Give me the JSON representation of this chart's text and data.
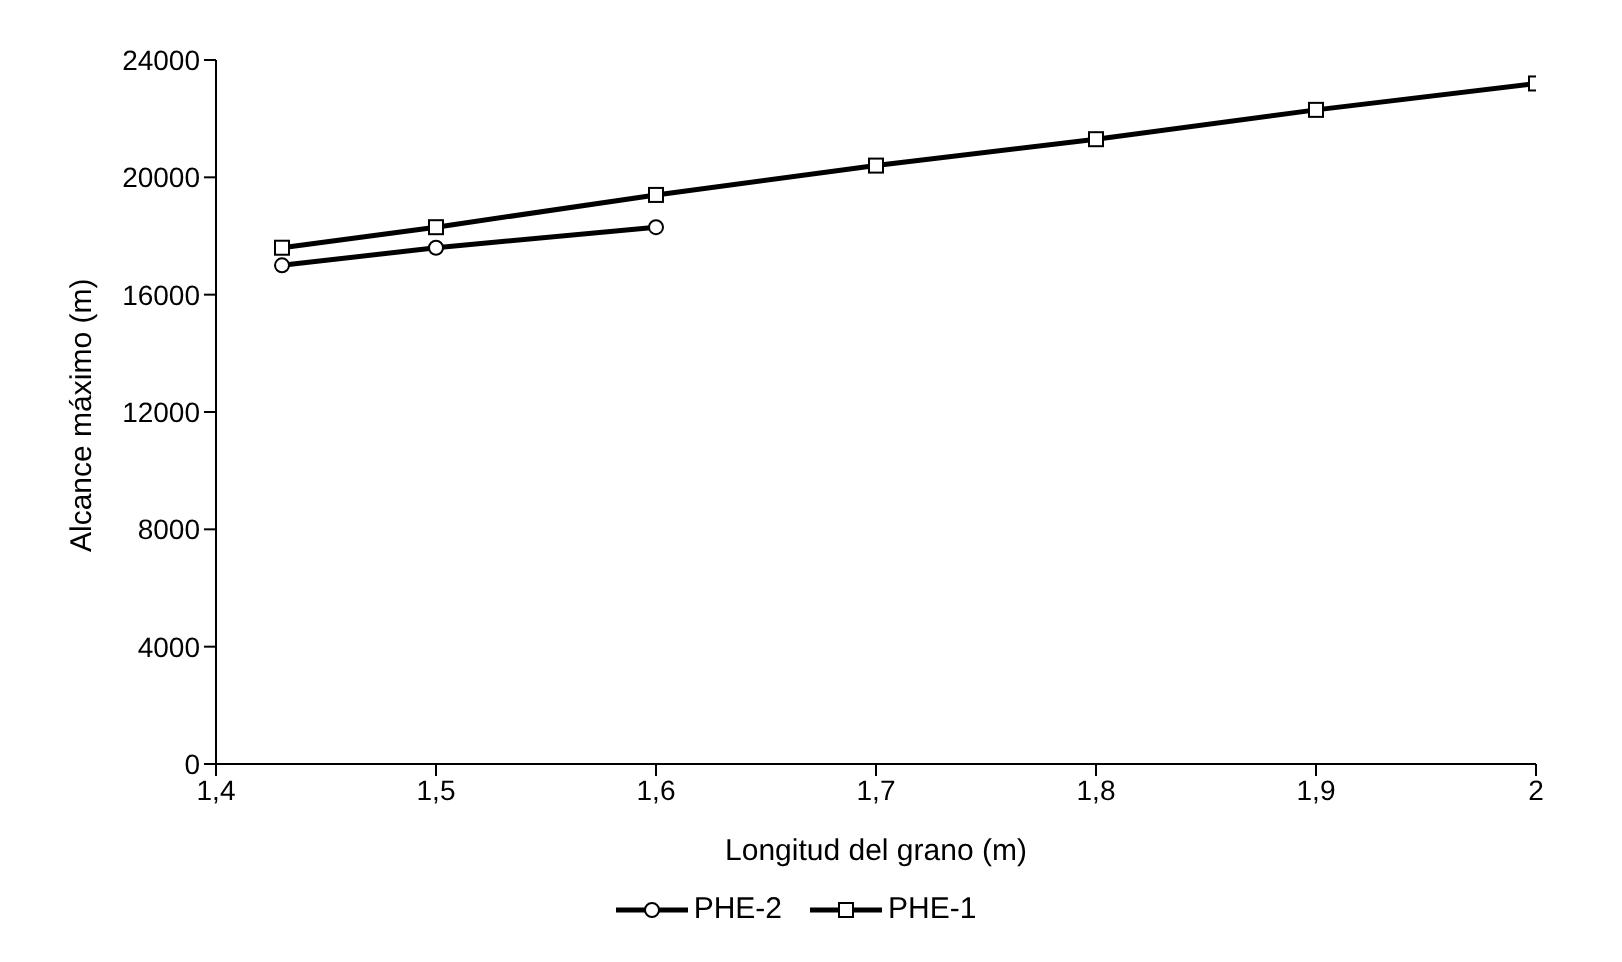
{
  "chart_data": {
    "type": "line",
    "xlabel": "Longitud del grano (m)",
    "ylabel": "Alcance máximo (m)",
    "xlim": [
      1.4,
      2
    ],
    "xticks": [
      {
        "value": 1.4,
        "label": "1,4"
      },
      {
        "value": 1.5,
        "label": "1,5"
      },
      {
        "value": 1.6,
        "label": "1,6"
      },
      {
        "value": 1.7,
        "label": "1,7"
      },
      {
        "value": 1.8,
        "label": "1,8"
      },
      {
        "value": 1.9,
        "label": "1,9"
      },
      2
    ],
    "ylim": [
      0,
      24000
    ],
    "yticks": [
      0,
      4000,
      8000,
      12000,
      16000,
      20000,
      24000
    ],
    "grid": false,
    "legend": "bottom",
    "line_style": "solid",
    "series": [
      {
        "name": "PHE-2",
        "color": "#000000",
        "marker": "circle",
        "x": [
          1.43,
          1.5,
          1.6
        ],
        "values": [
          17000,
          17600,
          18300
        ]
      },
      {
        "name": "PHE-1",
        "color": "#000000",
        "marker": "square",
        "x": [
          1.43,
          1.5,
          1.6,
          1.7,
          1.8,
          1.9,
          2
        ],
        "values": [
          17600,
          18300,
          19400,
          20400,
          21300,
          22300,
          23200
        ]
      }
    ]
  }
}
